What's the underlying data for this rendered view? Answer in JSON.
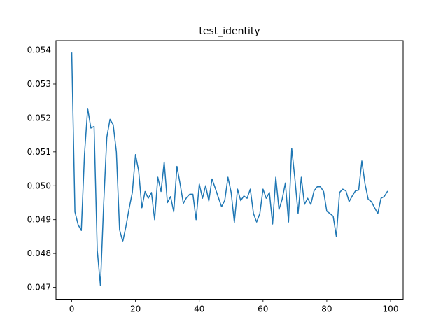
{
  "chart_data": {
    "type": "line",
    "title": "test_identity",
    "xlabel": "",
    "ylabel": "",
    "xlim": [
      -4.95,
      103.95
    ],
    "ylim": [
      0.04665,
      0.05428
    ],
    "x_ticks": [
      0,
      20,
      40,
      60,
      80,
      100
    ],
    "x_tick_labels": [
      "0",
      "20",
      "40",
      "60",
      "80",
      "100"
    ],
    "y_ticks": [
      0.047,
      0.048,
      0.049,
      0.05,
      0.051,
      0.052,
      0.053,
      0.054
    ],
    "y_tick_labels": [
      "0.047",
      "0.048",
      "0.049",
      "0.050",
      "0.051",
      "0.052",
      "0.053",
      "0.054"
    ],
    "grid": false,
    "legend": "none",
    "series": [
      {
        "color": "#1f77b4",
        "x": [
          0,
          1,
          2,
          3,
          4,
          5,
          6,
          7,
          8,
          9,
          10,
          11,
          12,
          13,
          14,
          15,
          16,
          17,
          18,
          19,
          20,
          21,
          22,
          23,
          24,
          25,
          26,
          27,
          28,
          29,
          30,
          31,
          32,
          33,
          34,
          35,
          36,
          37,
          38,
          39,
          40,
          41,
          42,
          43,
          44,
          45,
          46,
          47,
          48,
          49,
          50,
          51,
          52,
          53,
          54,
          55,
          56,
          57,
          58,
          59,
          60,
          61,
          62,
          63,
          64,
          65,
          66,
          67,
          68,
          69,
          70,
          71,
          72,
          73,
          74,
          75,
          76,
          77,
          78,
          79,
          80,
          81,
          82,
          83,
          84,
          85,
          86,
          87,
          88,
          89,
          90,
          91,
          92,
          93,
          94,
          95,
          96,
          97,
          98,
          99
        ],
        "values": [
          0.05391,
          0.04923,
          0.04885,
          0.04868,
          0.05093,
          0.05228,
          0.0517,
          0.05175,
          0.0481,
          0.04705,
          0.04943,
          0.05143,
          0.05196,
          0.0518,
          0.051,
          0.0487,
          0.04835,
          0.0488,
          0.04933,
          0.0498,
          0.05092,
          0.05043,
          0.04935,
          0.04983,
          0.04963,
          0.0498,
          0.049,
          0.05025,
          0.04983,
          0.0507,
          0.0495,
          0.04968,
          0.04923,
          0.05057,
          0.05005,
          0.04948,
          0.04965,
          0.04975,
          0.04975,
          0.049,
          0.05005,
          0.04963,
          0.05,
          0.04955,
          0.0502,
          0.04993,
          0.04965,
          0.04938,
          0.04957,
          0.05025,
          0.0498,
          0.04892,
          0.0499,
          0.04956,
          0.0497,
          0.04963,
          0.0499,
          0.04918,
          0.04893,
          0.04918,
          0.0499,
          0.04963,
          0.0498,
          0.04887,
          0.05025,
          0.0493,
          0.0496,
          0.05008,
          0.04893,
          0.0511,
          0.0502,
          0.04918,
          0.05025,
          0.04945,
          0.04963,
          0.04945,
          0.04985,
          0.04997,
          0.04997,
          0.04983,
          0.04925,
          0.04918,
          0.0491,
          0.0485,
          0.0498,
          0.0499,
          0.04985,
          0.04953,
          0.0497,
          0.04985,
          0.04987,
          0.05073,
          0.05005,
          0.0496,
          0.04953,
          0.04935,
          0.04918,
          0.04963,
          0.04968,
          0.04983
        ]
      }
    ]
  }
}
